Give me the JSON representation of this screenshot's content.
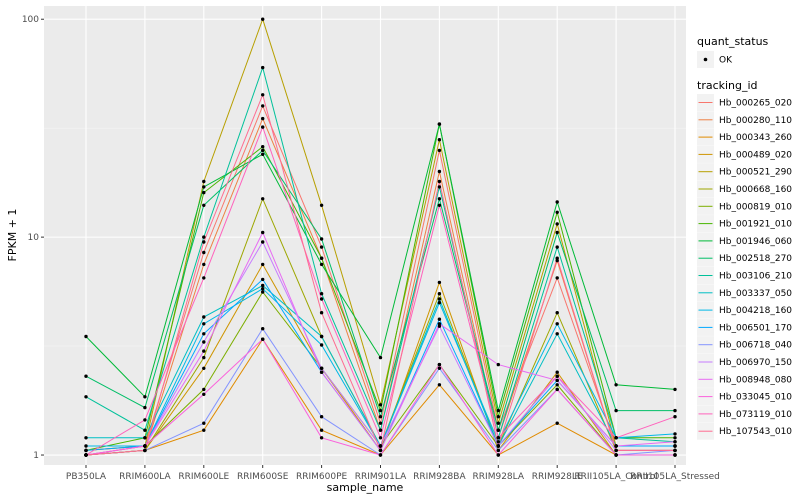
{
  "chart_data": {
    "type": "line",
    "xlabel": "sample_name",
    "ylabel": "FPKM + 1",
    "y_scale": "log10",
    "ylim": [
      0.9,
      115
    ],
    "y_ticks": [
      {
        "value": 1,
        "label": "1"
      },
      {
        "value": 10,
        "label": "10"
      },
      {
        "value": 100,
        "label": "100"
      }
    ],
    "grid": true,
    "categories": [
      "PB350LA",
      "RRIM600LA",
      "RRIM600LE",
      "RRIM600SE",
      "RRIM600PE",
      "RRIM901LA",
      "RRIM928BA",
      "RRIM928LA",
      "RRIM928LE",
      "RRII105LA_Control",
      "RRII105LA_Stressed"
    ],
    "legend": {
      "position": "right",
      "quant_status_title": "quant_status",
      "quant_status_items": [
        "OK"
      ],
      "tracking_title": "tracking_id"
    },
    "series": [
      {
        "name": "Hb_000265_020",
        "color": "#F8766D",
        "values": [
          1.05,
          1.1,
          8.5,
          40,
          9,
          1.4,
          25,
          1.3,
          6.5,
          1.1,
          1.1
        ]
      },
      {
        "name": "Hb_000280_110",
        "color": "#EE8043",
        "values": [
          1.0,
          1.05,
          7.5,
          35,
          8,
          1.3,
          20,
          1.2,
          7.8,
          1.05,
          1.05
        ]
      },
      {
        "name": "Hb_000343_260",
        "color": "#E08B00",
        "values": [
          1.0,
          1.05,
          1.3,
          3.4,
          1.3,
          1.0,
          2.1,
          1.0,
          1.4,
          1.0,
          1.0
        ]
      },
      {
        "name": "Hb_000489_020",
        "color": "#CE9500",
        "values": [
          1.0,
          1.05,
          2.5,
          7.5,
          2.5,
          1.05,
          6.2,
          1.05,
          2.4,
          1.0,
          1.0
        ]
      },
      {
        "name": "Hb_000521_290",
        "color": "#B79F00",
        "values": [
          1.05,
          1.1,
          18,
          100,
          14,
          1.7,
          28,
          1.4,
          11.5,
          1.1,
          1.1
        ]
      },
      {
        "name": "Hb_000668_160",
        "color": "#9DA700",
        "values": [
          1.0,
          1.05,
          2.8,
          15,
          3.5,
          1.1,
          5.5,
          1.1,
          4.5,
          1.05,
          1.05
        ]
      },
      {
        "name": "Hb_000819_010",
        "color": "#7CAE00",
        "values": [
          1.0,
          1.1,
          2.0,
          5.6,
          2.5,
          1.1,
          2.6,
          1.1,
          2.1,
          1.0,
          1.0
        ]
      },
      {
        "name": "Hb_001921_010",
        "color": "#49B500",
        "values": [
          1.05,
          1.2,
          16,
          26,
          8,
          1.6,
          33,
          1.5,
          13,
          1.2,
          1.2
        ]
      },
      {
        "name": "Hb_001946_060",
        "color": "#00BA38",
        "values": [
          3.5,
          1.85,
          17,
          24,
          7.5,
          2.8,
          33,
          1.6,
          14.5,
          2.1,
          2.0
        ]
      },
      {
        "name": "Hb_002518_270",
        "color": "#00BE67",
        "values": [
          2.3,
          1.65,
          14,
          25,
          9.8,
          1.5,
          15,
          1.3,
          10.5,
          1.6,
          1.6
        ]
      },
      {
        "name": "Hb_003106_210",
        "color": "#00C19A",
        "values": [
          1.85,
          1.3,
          10,
          60,
          5.5,
          1.3,
          17,
          1.2,
          9,
          1.2,
          1.15
        ]
      },
      {
        "name": "Hb_003337_050",
        "color": "#00BFC4",
        "values": [
          1.2,
          1.2,
          4.3,
          6,
          3.5,
          1.1,
          5.2,
          1.1,
          3.6,
          1.1,
          1.1
        ]
      },
      {
        "name": "Hb_004218_160",
        "color": "#00B8E7",
        "values": [
          1.1,
          1.1,
          4.0,
          5.8,
          3.2,
          1.1,
          5.0,
          1.15,
          4.0,
          1.2,
          1.25
        ]
      },
      {
        "name": "Hb_006501_170",
        "color": "#00A9FF",
        "values": [
          1.05,
          1.1,
          3.6,
          6.4,
          2.4,
          1.05,
          4.2,
          1.1,
          2.2,
          1.1,
          1.1
        ]
      },
      {
        "name": "Hb_006718_040",
        "color": "#8494FF",
        "values": [
          1.0,
          1.05,
          1.4,
          3.8,
          1.5,
          1.0,
          2.5,
          1.05,
          2.0,
          1.0,
          1.05
        ]
      },
      {
        "name": "Hb_006970_150",
        "color": "#C77CFF",
        "values": [
          1.0,
          1.1,
          3.3,
          9.5,
          2.5,
          1.1,
          3.9,
          1.1,
          2.3,
          1.05,
          1.05
        ]
      },
      {
        "name": "Hb_008948_080",
        "color": "#E76BF3",
        "values": [
          1.0,
          1.1,
          3.0,
          10.5,
          2.4,
          1.05,
          4.0,
          2.6,
          2.2,
          1.1,
          1.15
        ]
      },
      {
        "name": "Hb_033045_010",
        "color": "#FA62DB",
        "values": [
          1.0,
          1.1,
          1.9,
          3.4,
          1.2,
          1.0,
          2.6,
          1.0,
          2.0,
          1.0,
          1.0
        ]
      },
      {
        "name": "Hb_073119_010",
        "color": "#FF62BC",
        "values": [
          1.0,
          1.45,
          6.5,
          32,
          5.2,
          1.2,
          14,
          1.2,
          2.3,
          1.2,
          1.5
        ]
      },
      {
        "name": "Hb_107543_010",
        "color": "#FF6C91",
        "values": [
          1.0,
          1.05,
          9.5,
          45,
          4.5,
          1.05,
          18,
          1.1,
          8,
          1.05,
          1.05
        ]
      }
    ]
  }
}
